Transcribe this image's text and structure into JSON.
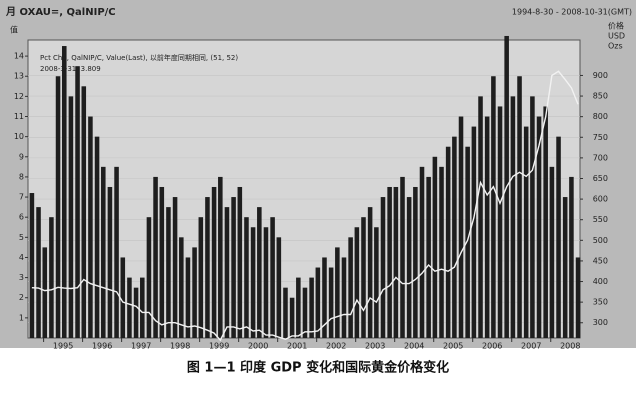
{
  "header": {
    "left": "月 OXAU=, QalNIP/C",
    "right": "1994-8-30 - 2008-10-31(GMT)"
  },
  "legend_lines": [
    "Pct Chg, QalNIP/C, Value(Last), 以前年度同期相同, (51, 52)",
    "2008-3-31, 3.809"
  ],
  "left_axis_unit": "值",
  "right_axis_unit": [
    "价格",
    "USD",
    "Ozs"
  ],
  "chart_data": {
    "type": "bar_line",
    "caption": "图 1—1   印度 GDP 变化和国际黄金价格变化",
    "x": [
      1994.7,
      1994.87,
      1995.03,
      1995.2,
      1995.37,
      1995.53,
      1995.7,
      1995.87,
      1996.03,
      1996.2,
      1996.37,
      1996.53,
      1996.7,
      1996.87,
      1997.03,
      1997.2,
      1997.37,
      1997.53,
      1997.7,
      1997.87,
      1998.03,
      1998.2,
      1998.37,
      1998.53,
      1998.7,
      1998.87,
      1999.03,
      1999.2,
      1999.37,
      1999.53,
      1999.7,
      1999.87,
      2000.03,
      2000.2,
      2000.37,
      2000.53,
      2000.7,
      2000.87,
      2001.03,
      2001.2,
      2001.37,
      2001.53,
      2001.7,
      2001.87,
      2002.03,
      2002.2,
      2002.37,
      2002.53,
      2002.7,
      2002.87,
      2003.03,
      2003.2,
      2003.37,
      2003.53,
      2003.7,
      2003.87,
      2004.03,
      2004.2,
      2004.37,
      2004.53,
      2004.7,
      2004.87,
      2005.03,
      2005.2,
      2005.37,
      2005.53,
      2005.7,
      2005.87,
      2006.03,
      2006.2,
      2006.37,
      2006.53,
      2006.7,
      2006.87,
      2007.03,
      2007.2,
      2007.37,
      2007.53,
      2007.7,
      2007.87,
      2008.03,
      2008.2,
      2008.37,
      2008.53,
      2008.7
    ],
    "series": [
      {
        "color": "#1e1e1e",
        "values": [
          7.2,
          6.5,
          4.5,
          6,
          13,
          14.5,
          12,
          13.5,
          12.5,
          11,
          10,
          8.5,
          7.5,
          8.5,
          4,
          3,
          2.5,
          3,
          6,
          8,
          7.5,
          6.5,
          7,
          5,
          4,
          4.5,
          6,
          7,
          7.5,
          8,
          6.5,
          7,
          7.5,
          6,
          5.5,
          6.5,
          5.5,
          6,
          5,
          2.5,
          2,
          3,
          2.5,
          3,
          3.5,
          4,
          3.5,
          4.5,
          4,
          5,
          5.5,
          6,
          6.5,
          5.5,
          7,
          7.5,
          7.5,
          8,
          7,
          7.5,
          8.5,
          8,
          9,
          8.5,
          9.5,
          10,
          11,
          9.5,
          10.5,
          12,
          11,
          13,
          11.5,
          15,
          12,
          13,
          10.5,
          12,
          11,
          11.5,
          8.5,
          10,
          7,
          8,
          4
        ]
      },
      {
        "color": "#f2f2f2",
        "axis": "y2",
        "values": [
          385,
          384,
          378,
          380,
          386,
          384,
          383,
          385,
          405,
          395,
          390,
          385,
          380,
          375,
          350,
          345,
          340,
          325,
          325,
          305,
          295,
          300,
          300,
          295,
          290,
          292,
          288,
          282,
          275,
          258,
          290,
          290,
          285,
          290,
          280,
          282,
          270,
          270,
          265,
          260,
          268,
          268,
          278,
          278,
          280,
          295,
          310,
          315,
          320,
          320,
          355,
          330,
          360,
          350,
          380,
          390,
          410,
          395,
          395,
          405,
          420,
          440,
          425,
          430,
          425,
          435,
          470,
          500,
          555,
          640,
          610,
          630,
          590,
          630,
          655,
          665,
          655,
          670,
          730,
          800,
          900,
          910,
          890,
          870,
          830
        ]
      }
    ],
    "xlim": [
      1994.6,
      2008.75
    ],
    "xticks": [
      1995,
      1996,
      1997,
      1998,
      1999,
      2000,
      2001,
      2002,
      2003,
      2004,
      2005,
      2006,
      2007,
      2008
    ],
    "ylim": [
      0,
      14.8
    ],
    "yticks": [
      1,
      2,
      3,
      4,
      5,
      6,
      7,
      8,
      9,
      10,
      11,
      12,
      13,
      14
    ],
    "y2lim": [
      263,
      986
    ],
    "y2ticks": [
      300,
      350,
      400,
      450,
      500,
      550,
      600,
      650,
      700,
      750,
      800,
      850,
      900
    ],
    "grid": true
  }
}
